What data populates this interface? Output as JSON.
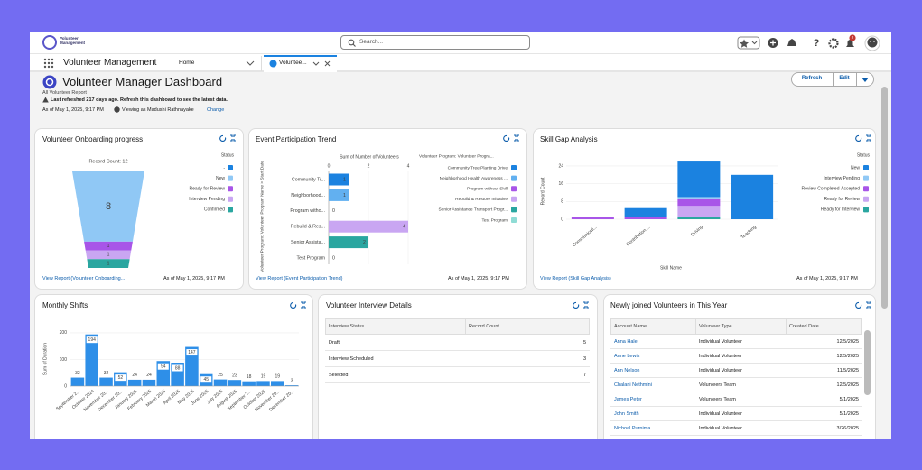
{
  "header": {
    "logo_text": "Volunteer Management",
    "search_placeholder": "Search...",
    "notification_count": 2
  },
  "nav": {
    "app_name": "Volunteer Management",
    "tabs": [
      "Home",
      "Voluntee..."
    ]
  },
  "dashboard": {
    "title": "Volunteer Manager Dashboard",
    "subtitle": "All Volunteer Report",
    "refresh_notice": "Last refreshed 217 days ago. Refresh this dashboard to see the latest data.",
    "as_of": "As of May 1, 2025, 9:17 PM",
    "viewing_as": "Viewing as Madushi Rathnayake",
    "change_link": "Change",
    "buttons": [
      "Refresh",
      "Edit"
    ]
  },
  "onboarding": {
    "title": "Volunteer Onboarding progress",
    "footer_link": "View Report (Volunteer Onboarding...",
    "footer_date": "As of May 1, 2025, 9:17 PM",
    "chart": {
      "type": "funnel",
      "caption": "Record Count: 12",
      "legend_title": "Status",
      "legend": [
        {
          "name": "-",
          "color": "#1b82e0"
        },
        {
          "name": "New",
          "color": "#90c8f5"
        },
        {
          "name": "Ready for Review",
          "color": "#a855e8"
        },
        {
          "name": "Interview Pending",
          "color": "#c9a6f2"
        },
        {
          "name": "Confirmed",
          "color": "#2aa6a0"
        }
      ],
      "segments": [
        {
          "name": "New",
          "value": 8
        },
        {
          "name": "Ready for Review",
          "value": 1
        },
        {
          "name": "Interview Pending",
          "value": 1
        },
        {
          "name": "Confirmed",
          "value": 1
        }
      ]
    }
  },
  "participation": {
    "title": "Event Participation Trend",
    "footer_link": "View Report (Event Participation Trend)",
    "footer_date": "As of May 1, 2025, 9:17 PM",
    "chart": {
      "type": "bar",
      "orientation": "horizontal",
      "x_title": "Sum of Number of Volunteers",
      "y_title": "Volunteer Program: Volunteer Program Name > Start Date",
      "categories": [
        "Community Tr...",
        "Neighborhood...",
        "Program witho...",
        "Rebuild & Res...",
        "Senior Assista...",
        "Test Program"
      ],
      "values": [
        1,
        1,
        0,
        4,
        2,
        0
      ],
      "xlim": [
        0,
        4
      ],
      "xticks": [
        0,
        2,
        4
      ],
      "grid": true,
      "legend_title": "Volunteer Program: Volunteer Progra...",
      "legend": [
        {
          "name": "Community Tree Planting Drive",
          "color": "#1b82e0"
        },
        {
          "name": "Neighborhood Health Awareness ...",
          "color": "#62b0f0"
        },
        {
          "name": "Program without Skill",
          "color": "#a855e8"
        },
        {
          "name": "Rebuild & Restore Initiative",
          "color": "#c9a6f2"
        },
        {
          "name": "Senior Assistance Transport Progr...",
          "color": "#2aa6a0"
        },
        {
          "name": "Test Program",
          "color": "#8fdcd5"
        }
      ]
    }
  },
  "skill_gap": {
    "title": "Skill Gap Analysis",
    "footer_link": "View Report (Skill Gap Analysis)",
    "footer_date": "As of May 1, 2025, 9:17 PM",
    "chart": {
      "type": "stacked_bar",
      "x_title": "Skill Name",
      "y_title": "Record Count",
      "legend_title": "Status",
      "categories": [
        "Communicati...",
        "Contribution ...",
        "Driving",
        "Teaching"
      ],
      "ylim": [
        0,
        27
      ],
      "yticks": [
        0,
        8,
        16,
        24
      ],
      "series": [
        {
          "name": "New",
          "color": "#1b82e0",
          "values": [
            0,
            4,
            16,
            20
          ]
        },
        {
          "name": "Interview Pending",
          "color": "#90c8f5",
          "values": [
            0,
            0,
            1,
            0
          ]
        },
        {
          "name": "Review Completed-Accepted",
          "color": "#a855e8",
          "values": [
            1,
            1,
            3,
            0
          ]
        },
        {
          "name": "Ready for Review",
          "color": "#c9a6f2",
          "values": [
            0,
            0,
            5,
            0
          ]
        },
        {
          "name": "Ready for Interview",
          "color": "#2aa6a0",
          "values": [
            0,
            0,
            1,
            0
          ]
        }
      ]
    }
  },
  "shifts": {
    "title": "Monthly Shifts",
    "chart": {
      "type": "bar",
      "y_title": "Sum of Duration",
      "color": "#2e8fe8",
      "ylim": [
        0,
        220
      ],
      "yticks": [
        0,
        100,
        200
      ],
      "categories": [
        "September 2...",
        "October 2024",
        "November 20...",
        "December 20...",
        "January 2025",
        "February 2025",
        "March 2025",
        "April 2025",
        "May 2025",
        "June 2025",
        "July 2025",
        "August 2025",
        "September 2...",
        "October 2025",
        "November 20...",
        "December 20..."
      ],
      "values": [
        32,
        194,
        32,
        52,
        24,
        24,
        94,
        88,
        147,
        45,
        25,
        23,
        18,
        19,
        19,
        3
      ]
    }
  },
  "interviews": {
    "title": "Volunteer Interview Details",
    "columns": [
      "Interview Status",
      "Record Count"
    ],
    "rows": [
      [
        "Draft",
        5
      ],
      [
        "Interview Scheduled",
        3
      ],
      [
        "Selected",
        7
      ]
    ]
  },
  "new_volunteers": {
    "title": "Newly joined Volunteers in This Year",
    "columns": [
      "Account Name",
      "Volunteer Type",
      "Created Date"
    ],
    "rows": [
      [
        "Anna Hale",
        "Individual Volunteer",
        "12/5/2025"
      ],
      [
        "Anne Lewis",
        "Individual Volunteer",
        "12/5/2025"
      ],
      [
        "Ann Nelson",
        "Individual Volunteer",
        "11/5/2025"
      ],
      [
        "Chalani Nethmini",
        "Volunteers Team",
        "12/5/2025"
      ],
      [
        "James Peter",
        "Volunteers Team",
        "5/1/2025"
      ],
      [
        "John Smith",
        "Individual Volunteer",
        "5/1/2025"
      ],
      [
        "Nichoal Purnima",
        "Individual Volunteer",
        "3/26/2025"
      ]
    ]
  }
}
